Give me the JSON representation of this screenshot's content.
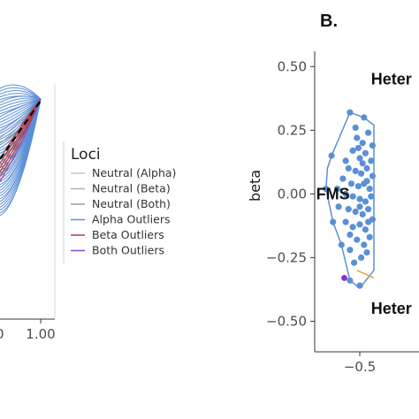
{
  "chart_data": [
    {
      "type": "line",
      "panel": "A (cropped)",
      "x_tick_labels": [
        "1.00"
      ],
      "xlim_visible": [
        0.87,
        1.02
      ],
      "legend": {
        "title": "Loci",
        "placement": "right",
        "entries": [
          {
            "label": "Neutral (Alpha)",
            "color": "#c9c9c9"
          },
          {
            "label": "Neutral (Beta)",
            "color": "#b3b3b3"
          },
          {
            "label": "Neutral (Both)",
            "color": "#9e9e9e"
          },
          {
            "label": "Alpha Outliers",
            "color": "#5b8fd6"
          },
          {
            "label": "Beta Outliers",
            "color": "#b83b3b"
          },
          {
            "label": "Both Outliers",
            "color": "#8e44c9"
          }
        ]
      },
      "reference_line": {
        "style": "dashed",
        "color": "#000000",
        "ends_at_x": 1.0
      }
    },
    {
      "type": "scatter",
      "panel": "B.",
      "ylabel": "beta",
      "y_ticks": [
        0.5,
        0.25,
        0.0,
        -0.25,
        -0.5
      ],
      "y_tick_labels": [
        "0.50",
        "0.25",
        "0.00",
        "−0.25",
        "−0.50"
      ],
      "x_ticks": [
        -0.5
      ],
      "x_tick_labels": [
        "−0.5"
      ],
      "xlim": [
        -0.82,
        -0.08
      ],
      "ylim": [
        -0.62,
        0.56
      ],
      "annotations": [
        {
          "text": "Heter",
          "x": -0.42,
          "y": 0.45
        },
        {
          "text": "FMS",
          "x": -0.81,
          "y": 0.0
        },
        {
          "text": "Heter",
          "x": -0.42,
          "y": -0.45
        }
      ],
      "hull": {
        "color": "#5b8fd6",
        "vertices": [
          [
            -0.7,
            0.15
          ],
          [
            -0.57,
            0.32
          ],
          [
            -0.47,
            0.3
          ],
          [
            -0.4,
            0.27
          ],
          [
            -0.4,
            -0.3
          ],
          [
            -0.5,
            -0.37
          ],
          [
            -0.57,
            -0.34
          ],
          [
            -0.63,
            -0.2
          ],
          [
            -0.69,
            -0.11
          ],
          [
            -0.74,
            0.02
          ],
          [
            -0.73,
            0.1
          ]
        ]
      },
      "extra_segment": {
        "color": "#e8a33d",
        "points": [
          [
            -0.52,
            -0.3
          ],
          [
            -0.4,
            -0.33
          ]
        ]
      },
      "highlight_point": {
        "color": "#8e2fc9",
        "x": -0.61,
        "y": -0.33
      },
      "points_color": "#5b8fd6",
      "points": [
        [
          -0.57,
          0.32
        ],
        [
          -0.47,
          0.3
        ],
        [
          -0.7,
          0.15
        ],
        [
          -0.74,
          0.02
        ],
        [
          -0.69,
          -0.11
        ],
        [
          -0.63,
          -0.2
        ],
        [
          -0.57,
          -0.34
        ],
        [
          -0.5,
          -0.36
        ],
        [
          -0.52,
          0.22
        ],
        [
          -0.48,
          0.2
        ],
        [
          -0.44,
          0.24
        ],
        [
          -0.41,
          0.19
        ],
        [
          -0.55,
          0.17
        ],
        [
          -0.5,
          0.14
        ],
        [
          -0.46,
          0.16
        ],
        [
          -0.42,
          0.13
        ],
        [
          -0.58,
          0.1
        ],
        [
          -0.53,
          0.09
        ],
        [
          -0.49,
          0.08
        ],
        [
          -0.45,
          0.1
        ],
        [
          -0.41,
          0.07
        ],
        [
          -0.62,
          0.06
        ],
        [
          -0.56,
          0.04
        ],
        [
          -0.51,
          0.03
        ],
        [
          -0.47,
          0.04
        ],
        [
          -0.43,
          0.02
        ],
        [
          -0.6,
          0.0
        ],
        [
          -0.55,
          -0.01
        ],
        [
          -0.5,
          -0.02
        ],
        [
          -0.46,
          -0.03
        ],
        [
          -0.42,
          -0.01
        ],
        [
          -0.65,
          -0.05
        ],
        [
          -0.58,
          -0.06
        ],
        [
          -0.53,
          -0.07
        ],
        [
          -0.48,
          -0.08
        ],
        [
          -0.44,
          -0.06
        ],
        [
          -0.41,
          -0.1
        ],
        [
          -0.6,
          -0.11
        ],
        [
          -0.55,
          -0.13
        ],
        [
          -0.5,
          -0.12
        ],
        [
          -0.46,
          -0.14
        ],
        [
          -0.52,
          -0.18
        ],
        [
          -0.47,
          -0.2
        ],
        [
          -0.43,
          -0.17
        ],
        [
          -0.57,
          -0.22
        ],
        [
          -0.49,
          -0.25
        ],
        [
          -0.45,
          -0.23
        ],
        [
          -0.54,
          -0.27
        ],
        [
          -0.6,
          0.13
        ],
        [
          -0.53,
          0.26
        ],
        [
          -0.45,
          0.05
        ],
        [
          -0.57,
          -0.16
        ],
        [
          -0.51,
          0.18
        ],
        [
          -0.44,
          -0.11
        ],
        [
          -0.66,
          0.02
        ],
        [
          -0.48,
          0.12
        ],
        [
          -0.5,
          -0.05
        ]
      ]
    }
  ]
}
